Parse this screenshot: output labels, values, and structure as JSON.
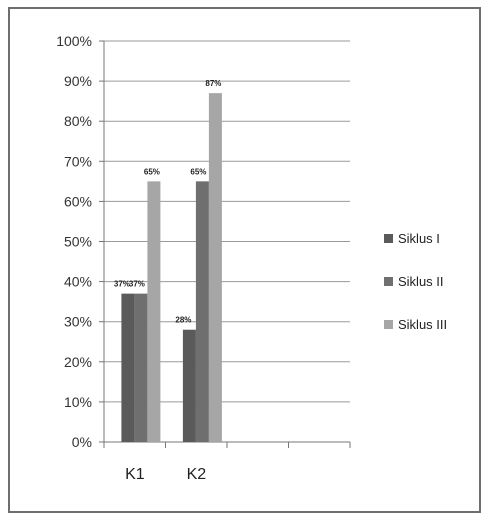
{
  "chart_data": {
    "type": "bar",
    "categories": [
      "K1",
      "K2"
    ],
    "series": [
      {
        "name": "Siklus I",
        "values": [
          37,
          28
        ],
        "labels": [
          "37%",
          "28%"
        ],
        "color": "#5a5a5a"
      },
      {
        "name": "Siklus II",
        "values": [
          37,
          65
        ],
        "labels": [
          "37%",
          "65%"
        ],
        "color": "#6f6f6f"
      },
      {
        "name": "Siklus III",
        "values": [
          65,
          87
        ],
        "labels": [
          "65%",
          "87%"
        ],
        "color": "#a6a6a6"
      }
    ],
    "y_ticks": [
      "0%",
      "10%",
      "20%",
      "30%",
      "40%",
      "50%",
      "60%",
      "70%",
      "80%",
      "90%",
      "100%"
    ],
    "ylim": [
      0,
      100
    ],
    "grid": true,
    "legend_position": "right",
    "title": "",
    "xlabel": "",
    "ylabel": ""
  }
}
